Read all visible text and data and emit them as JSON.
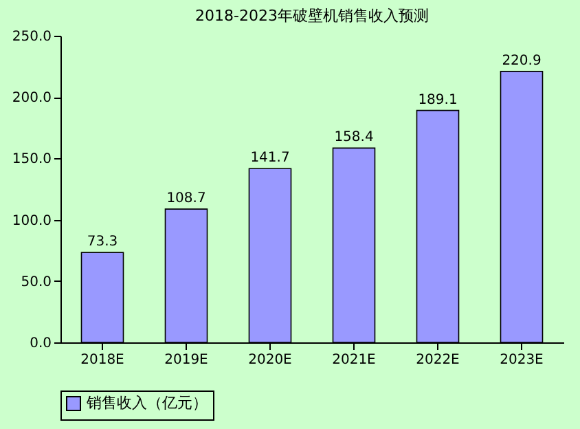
{
  "chart_data": {
    "type": "bar",
    "title": "2018-2023年破壁机销售收入预测",
    "categories": [
      "2018E",
      "2019E",
      "2020E",
      "2021E",
      "2022E",
      "2023E"
    ],
    "series": [
      {
        "name": "销售收入（亿元）",
        "color": "#9999ff",
        "values": [
          73.3,
          108.7,
          141.7,
          158.4,
          189.1,
          220.9
        ]
      }
    ],
    "ylim": [
      0,
      250
    ],
    "yticks": [
      {
        "value": 0,
        "label": "0.0"
      },
      {
        "value": 50,
        "label": "50.0"
      },
      {
        "value": 100,
        "label": "100.0"
      },
      {
        "value": 150,
        "label": "150.0"
      },
      {
        "value": 200,
        "label": "200.0"
      },
      {
        "value": 250,
        "label": "250.0"
      }
    ],
    "data_labels": true,
    "grid": false,
    "legend": "bottom"
  }
}
